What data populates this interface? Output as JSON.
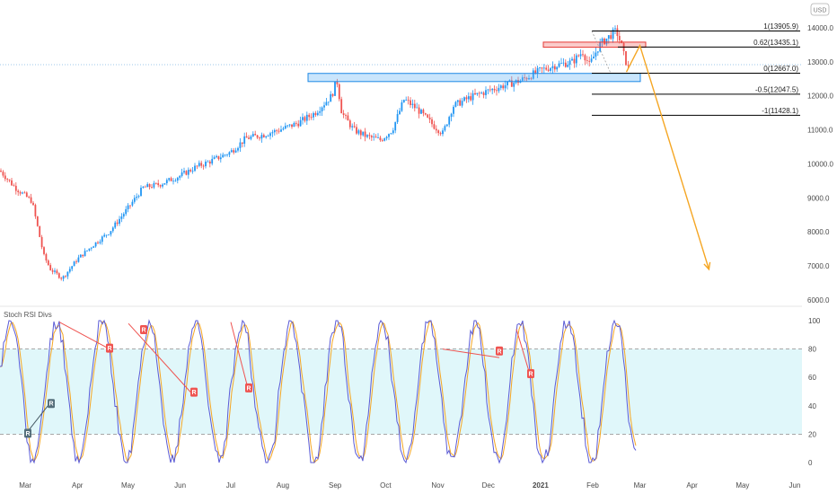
{
  "currency_label": "USD",
  "indicator_title": "Stoch RSI Divs",
  "colors": {
    "up": "#2196f3",
    "down": "#ef5350",
    "k_line": "#5b5bd6",
    "d_line": "#f5a623",
    "zone_blue": "#64b5f6",
    "zone_red": "#ef5350",
    "projection": "#f5a623",
    "fib_line": "#000000",
    "band_fill": "#e0f7fa"
  },
  "chart_data": [
    {
      "type": "candlestick",
      "title": "",
      "x_ticks": [
        "Mar",
        "Apr",
        "May",
        "Jun",
        "Jul",
        "Aug",
        "Sep",
        "Oct",
        "Nov",
        "Dec",
        "2021",
        "Feb",
        "Mar",
        "Apr",
        "May",
        "Jun"
      ],
      "y_ticks": [
        14000.0,
        13000.0,
        12000.0,
        11000.0,
        10000.0,
        9000.0,
        8000.0,
        7000.0,
        6000.0
      ],
      "ylim": [
        5850,
        14350
      ],
      "key_prices": {
        "start_high": 9800,
        "march_low": 6630,
        "sept_peak": 12470,
        "oct_low": 10700,
        "nov_low": 10900,
        "feb_high": 13906,
        "last": 12700
      },
      "fib_levels": [
        {
          "label": "1(13905.9)",
          "value": 13905.9
        },
        {
          "label": "0.62(13435.1)",
          "value": 13435.1
        },
        {
          "label": "0(12667.0)",
          "value": 12667.0
        },
        {
          "label": "-0.5(12047.5)",
          "value": 12047.5
        },
        {
          "label": "-1(11428.1)",
          "value": 11428.1
        }
      ],
      "zones": [
        {
          "name": "support",
          "low": 12420,
          "high": 12660
        },
        {
          "name": "resistance",
          "low": 13430,
          "high": 13580
        }
      ],
      "projection": [
        {
          "date": "2021-02-21",
          "price": 12700
        },
        {
          "date": "2021-03-01",
          "price": 13480
        },
        {
          "date": "2021-04-11",
          "price": 6900
        }
      ]
    },
    {
      "type": "line",
      "title": "Stoch RSI Divs",
      "y_ticks": [
        100,
        80,
        60,
        40,
        20,
        0
      ],
      "ylim": [
        -3,
        103
      ],
      "bands": [
        20,
        80
      ],
      "series": [],
      "divergence_labels": [
        "R",
        "R",
        "R",
        "R",
        "R",
        "R",
        "R",
        "R"
      ]
    }
  ]
}
